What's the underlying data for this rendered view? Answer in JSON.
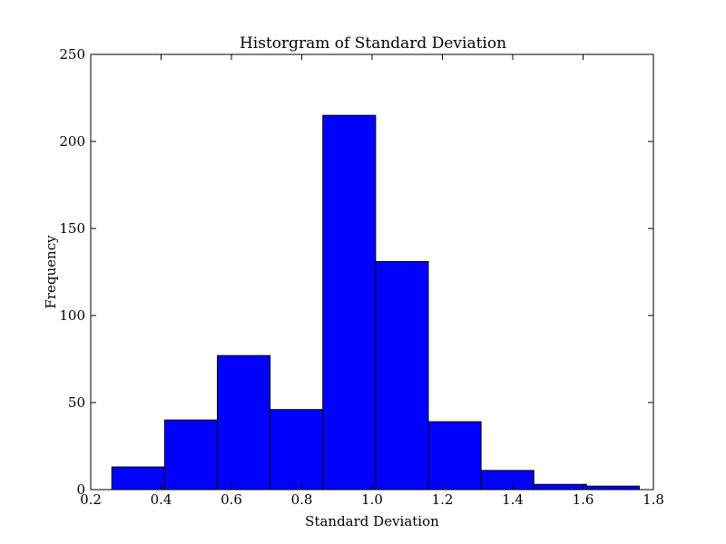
{
  "chart_data": {
    "type": "bar",
    "title": "Historgram of Standard Deviation",
    "xlabel": "Standard Deviation",
    "ylabel": "Frequency",
    "xlim": [
      0.2,
      1.8
    ],
    "ylim": [
      0,
      250
    ],
    "x_ticks": [
      "0.2",
      "0.4",
      "0.6",
      "0.8",
      "1.0",
      "1.2",
      "1.4",
      "1.6",
      "1.8"
    ],
    "y_ticks": [
      "0",
      "50",
      "100",
      "150",
      "200",
      "250"
    ],
    "bin_edges": [
      0.26,
      0.41,
      0.56,
      0.71,
      0.86,
      1.01,
      1.16,
      1.31,
      1.46,
      1.61,
      1.76
    ],
    "values": [
      13,
      40,
      77,
      46,
      215,
      131,
      39,
      11,
      3,
      2
    ],
    "bar_color": "#0000ff",
    "edge_color": "#000000",
    "grid": false
  }
}
